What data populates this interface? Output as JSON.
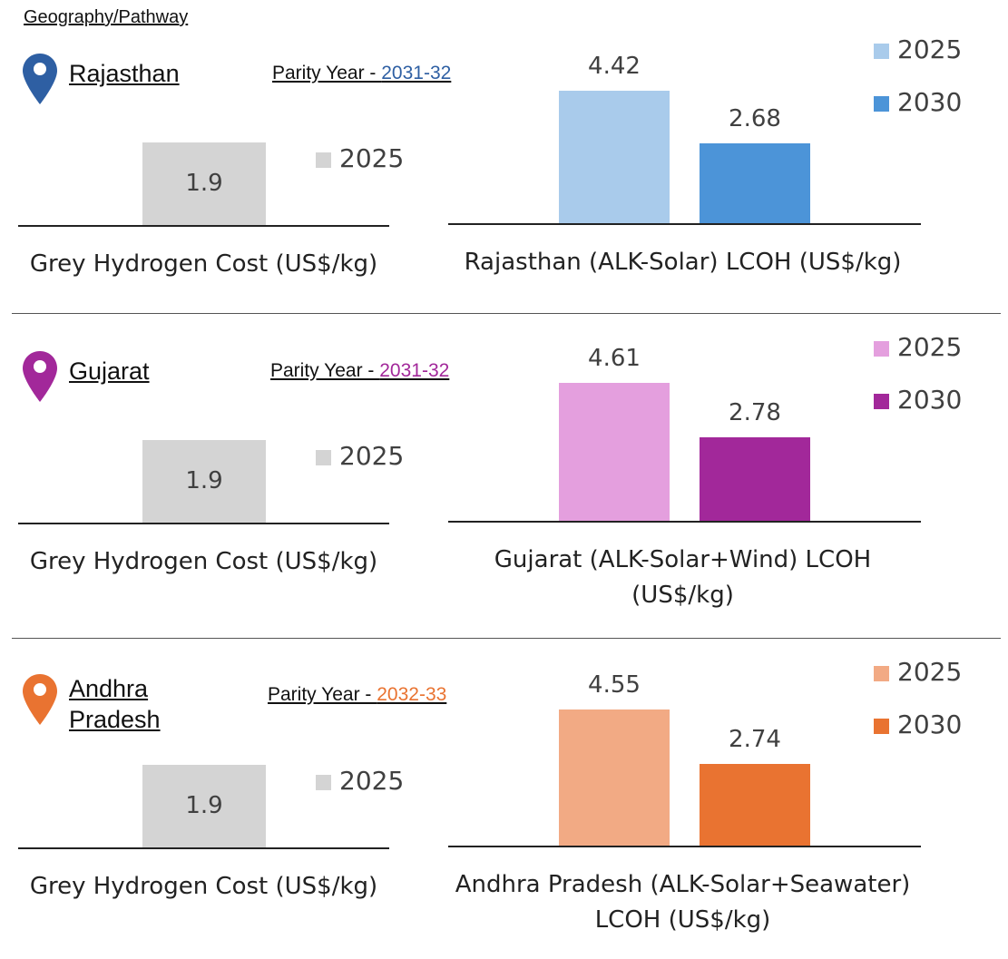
{
  "header": "Geography/Pathway",
  "parity_prefix": "Parity Year - ",
  "chart_data": [
    {
      "region": "Rajasthan",
      "accent": "#2E5FA3",
      "parity_year": "2031-32",
      "grey": {
        "type": "bar",
        "title": "Grey Hydrogen Cost (US$/kg)",
        "categories": [
          "2025"
        ],
        "values": [
          1.9
        ],
        "color": "#D4D4D4",
        "ylim": [
          0,
          5
        ]
      },
      "lcoh": {
        "type": "bar",
        "title": "Rajasthan (ALK-Solar) LCOH (US$/kg)",
        "title_lines": [
          "Rajasthan (ALK-Solar) LCOH (US$/kg)"
        ],
        "categories": [
          "2025",
          "2030"
        ],
        "values": [
          4.42,
          2.68
        ],
        "colors": [
          "#A9CBEB",
          "#4C94D8"
        ],
        "ylim": [
          0,
          5
        ]
      }
    },
    {
      "region": "Gujarat",
      "accent": "#A2289A",
      "parity_year": "2031-32",
      "grey": {
        "type": "bar",
        "title": "Grey Hydrogen Cost (US$/kg)",
        "categories": [
          "2025"
        ],
        "values": [
          1.9
        ],
        "color": "#D4D4D4",
        "ylim": [
          0,
          5
        ]
      },
      "lcoh": {
        "type": "bar",
        "title": "Gujarat (ALK-Solar+Wind) LCOH (US$/kg)",
        "title_lines": [
          "Gujarat (ALK-Solar+Wind) LCOH",
          "(US$/kg)"
        ],
        "categories": [
          "2025",
          "2030"
        ],
        "values": [
          4.61,
          2.78
        ],
        "colors": [
          "#E49FDE",
          "#A2289A"
        ],
        "ylim": [
          0,
          5
        ]
      }
    },
    {
      "region": "Andhra Pradesh",
      "region_lines": [
        "Andhra",
        "Pradesh"
      ],
      "accent": "#E97331",
      "parity_year": "2032-33",
      "grey": {
        "type": "bar",
        "title": "Grey Hydrogen Cost (US$/kg)",
        "categories": [
          "2025"
        ],
        "values": [
          1.9
        ],
        "color": "#D4D4D4",
        "ylim": [
          0,
          5
        ]
      },
      "lcoh": {
        "type": "bar",
        "title": "Andhra Pradesh (ALK-Solar+Seawater) LCOH (US$/kg)",
        "title_lines": [
          "Andhra Pradesh (ALK-Solar+Seawater)",
          "LCOH (US$/kg)"
        ],
        "categories": [
          "2025",
          "2030"
        ],
        "values": [
          4.55,
          2.74
        ],
        "colors": [
          "#F2AA84",
          "#E97331"
        ],
        "ylim": [
          0,
          5
        ]
      }
    }
  ]
}
